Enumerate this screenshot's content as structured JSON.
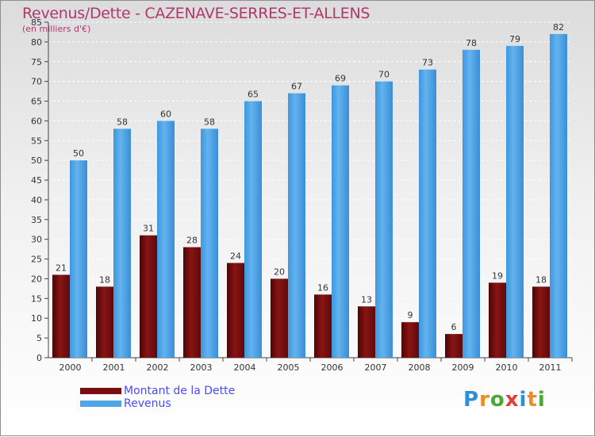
{
  "title": "Revenus/Dette - CAZENAVE-SERRES-ET-ALLENS",
  "subtitle": "(en milliers d'€)",
  "logo": {
    "text": "Proxiti",
    "letters": [
      "P",
      "r",
      "o",
      "x",
      "i",
      "t",
      "i"
    ],
    "colors": [
      "#2f8fd6",
      "#f08a24",
      "#4aa834",
      "#e23d3d",
      "#2f8fd6",
      "#f08a24",
      "#4aa834"
    ]
  },
  "colors": {
    "debt": "#7a0e0e",
    "revenue": "#4ea6e6",
    "title": "#b0386a",
    "legend_text": "#4a4aff"
  },
  "chart_data": {
    "type": "bar",
    "categories": [
      "2000",
      "2001",
      "2002",
      "2003",
      "2004",
      "2005",
      "2006",
      "2007",
      "2008",
      "2009",
      "2010",
      "2011"
    ],
    "series": [
      {
        "name": "Montant de la Dette",
        "values": [
          21,
          18,
          31,
          28,
          24,
          20,
          16,
          13,
          9,
          6,
          19,
          18
        ]
      },
      {
        "name": "Revenus",
        "values": [
          50,
          58,
          60,
          58,
          65,
          67,
          69,
          70,
          73,
          78,
          79,
          82
        ]
      }
    ],
    "ylim": [
      0,
      85
    ],
    "yticks": [
      0,
      5,
      10,
      15,
      20,
      25,
      30,
      35,
      40,
      45,
      50,
      55,
      60,
      65,
      70,
      75,
      80,
      85
    ],
    "grid": true,
    "legend": "bottom-left"
  }
}
